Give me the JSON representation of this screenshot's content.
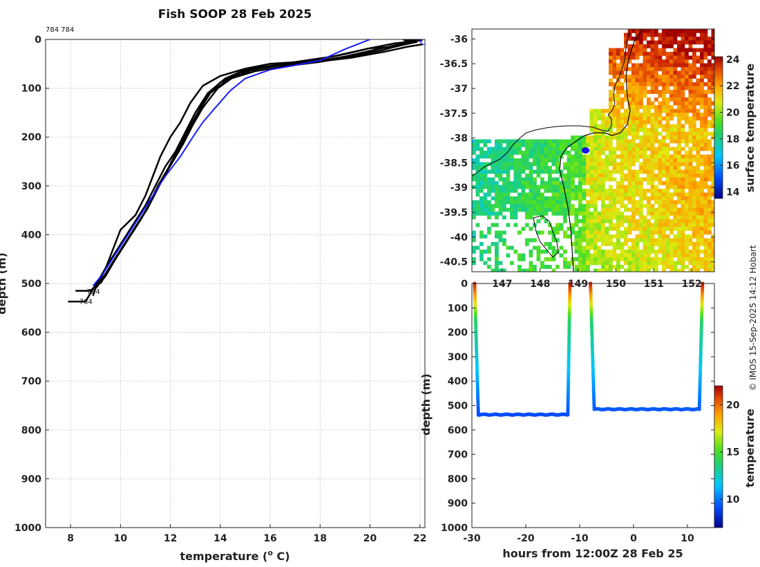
{
  "title": "Fish SOOP 28 Feb 2025",
  "profile_tag": "784 784",
  "credit": "© IMOS 15-Sep-2025 14:12 Hobart",
  "colors": {
    "profile": "#000000",
    "mean_profile": "#1a1aff"
  },
  "chart_data": [
    {
      "type": "line",
      "panel": "temperature-profiles",
      "xlabel": "temperature (o C)",
      "ylabel": "depth (m)",
      "xlim": [
        7,
        22.2
      ],
      "ylim": [
        1000,
        0
      ],
      "xticks": [
        8,
        10,
        12,
        14,
        16,
        18,
        20,
        22
      ],
      "yticks": [
        0,
        100,
        200,
        300,
        400,
        500,
        600,
        700,
        800,
        900,
        1000
      ],
      "grid": true,
      "cast_labels": [
        "784",
        "784"
      ],
      "series": [
        {
          "color": "#000000",
          "points": [
            [
              22.0,
              0
            ],
            [
              21.4,
              2
            ],
            [
              21.6,
              8
            ],
            [
              21.0,
              15
            ],
            [
              20.0,
              18
            ],
            [
              19.0,
              30
            ],
            [
              17.5,
              45
            ],
            [
              16.0,
              50
            ],
            [
              15.0,
              60
            ],
            [
              14.0,
              75
            ],
            [
              13.3,
              95
            ],
            [
              12.8,
              130
            ],
            [
              12.4,
              170
            ],
            [
              12.0,
              200
            ],
            [
              11.6,
              240
            ],
            [
              11.3,
              280
            ],
            [
              11.0,
              320
            ],
            [
              10.6,
              360
            ],
            [
              10.0,
              390
            ],
            [
              9.7,
              430
            ],
            [
              9.4,
              470
            ],
            [
              9.1,
              500
            ],
            [
              8.8,
              515
            ],
            [
              8.2,
              515
            ]
          ]
        },
        {
          "color": "#000000",
          "points": [
            [
              22.1,
              2
            ],
            [
              21.0,
              8
            ],
            [
              20.0,
              18
            ],
            [
              18.5,
              35
            ],
            [
              16.5,
              50
            ],
            [
              15.0,
              62
            ],
            [
              14.2,
              80
            ],
            [
              13.5,
              110
            ],
            [
              13.0,
              150
            ],
            [
              12.6,
              190
            ],
            [
              12.2,
              230
            ],
            [
              11.8,
              260
            ],
            [
              11.4,
              300
            ],
            [
              11.0,
              340
            ],
            [
              10.5,
              380
            ],
            [
              10.0,
              420
            ],
            [
              9.5,
              460
            ],
            [
              9.1,
              495
            ],
            [
              8.8,
              520
            ],
            [
              8.6,
              537
            ],
            [
              7.9,
              537
            ]
          ]
        },
        {
          "color": "#000000",
          "points": [
            [
              21.8,
              0
            ],
            [
              21.5,
              5
            ],
            [
              21.0,
              12
            ],
            [
              20.3,
              20
            ],
            [
              19.0,
              35
            ],
            [
              17.8,
              45
            ],
            [
              16.5,
              52
            ],
            [
              15.3,
              62
            ],
            [
              14.5,
              78
            ],
            [
              13.9,
              100
            ],
            [
              13.3,
              140
            ],
            [
              12.9,
              175
            ],
            [
              12.5,
              215
            ],
            [
              12.1,
              250
            ],
            [
              11.7,
              285
            ],
            [
              11.3,
              325
            ],
            [
              10.9,
              360
            ],
            [
              10.4,
              400
            ],
            [
              9.9,
              440
            ],
            [
              9.4,
              480
            ],
            [
              9.0,
              510
            ],
            [
              8.9,
              525
            ]
          ]
        },
        {
          "color": "#000000",
          "points": [
            [
              22.1,
              10
            ],
            [
              21.5,
              15
            ],
            [
              20.6,
              25
            ],
            [
              19.2,
              38
            ],
            [
              17.5,
              48
            ],
            [
              16.0,
              55
            ],
            [
              14.8,
              68
            ],
            [
              14.0,
              88
            ],
            [
              13.4,
              120
            ],
            [
              13.0,
              160
            ],
            [
              12.6,
              200
            ],
            [
              12.2,
              240
            ],
            [
              11.8,
              275
            ],
            [
              11.4,
              310
            ],
            [
              11.1,
              345
            ],
            [
              10.6,
              385
            ],
            [
              10.1,
              425
            ],
            [
              9.6,
              465
            ],
            [
              9.2,
              500
            ]
          ]
        },
        {
          "color": "#000000",
          "points": [
            [
              21.9,
              5
            ],
            [
              21.2,
              12
            ],
            [
              20.5,
              22
            ],
            [
              19.5,
              32
            ],
            [
              18.0,
              46
            ],
            [
              16.6,
              55
            ],
            [
              15.4,
              65
            ],
            [
              14.3,
              82
            ],
            [
              13.6,
              110
            ],
            [
              13.1,
              150
            ],
            [
              12.7,
              185
            ],
            [
              12.3,
              225
            ],
            [
              11.9,
              265
            ],
            [
              11.5,
              300
            ],
            [
              11.2,
              335
            ],
            [
              10.8,
              370
            ],
            [
              10.3,
              410
            ],
            [
              9.8,
              450
            ],
            [
              9.4,
              485
            ],
            [
              9.0,
              510
            ]
          ]
        },
        {
          "color": "#1a1aff",
          "points": [
            [
              20.0,
              0
            ],
            [
              19.0,
              20
            ],
            [
              18.0,
              43
            ],
            [
              17.0,
              53
            ],
            [
              16.0,
              62
            ],
            [
              15.0,
              80
            ],
            [
              14.4,
              105
            ],
            [
              13.8,
              140
            ],
            [
              13.3,
              170
            ],
            [
              12.9,
              200
            ],
            [
              12.4,
              240
            ],
            [
              11.8,
              280
            ],
            [
              11.3,
              320
            ],
            [
              10.8,
              360
            ],
            [
              10.3,
              400
            ],
            [
              9.8,
              440
            ],
            [
              9.3,
              480
            ],
            [
              8.9,
              505
            ]
          ]
        }
      ],
      "marker": {
        "x": 22.1,
        "y": 2
      }
    },
    {
      "type": "heatmap",
      "panel": "surface-temperature-map",
      "xticks": [
        147,
        148,
        149,
        150,
        151,
        152
      ],
      "yticks": [
        -36,
        -36.5,
        -37,
        -37.5,
        -38,
        -38.5,
        -39,
        -39.5,
        -40,
        -40.5
      ],
      "xlim": [
        146.2,
        152.6
      ],
      "ylim": [
        -40.7,
        -35.8
      ],
      "colorbar": {
        "label": "surface temperature",
        "min": 13.5,
        "max": 24.2,
        "ticks": [
          14,
          16,
          18,
          20,
          22,
          24
        ],
        "placement": "right"
      },
      "position_marker": {
        "lon": 149.2,
        "lat": -38.25
      }
    },
    {
      "type": "scatter",
      "panel": "depth-time",
      "xlabel": "hours from 12:00Z 28 Feb 25",
      "ylabel": "depth (m)",
      "xlim": [
        -30,
        15
      ],
      "ylim": [
        1000,
        0
      ],
      "xticks": [
        -30,
        -20,
        -10,
        0,
        10
      ],
      "yticks": [
        0,
        100,
        200,
        300,
        400,
        500,
        600,
        700,
        800,
        900,
        1000
      ],
      "colorbar": {
        "label": "temperature",
        "min": 7,
        "max": 22,
        "ticks": [
          10,
          15,
          20
        ],
        "placement": "right"
      },
      "dives": [
        {
          "t_start": -29.5,
          "t_bottom_start": -28.8,
          "t_bottom_end": -12.2,
          "t_end": -11.8,
          "depth": 537
        },
        {
          "t_start": -8.0,
          "t_bottom_start": -7.3,
          "t_bottom_end": 12.2,
          "t_end": 12.8,
          "depth": 515
        }
      ]
    }
  ]
}
